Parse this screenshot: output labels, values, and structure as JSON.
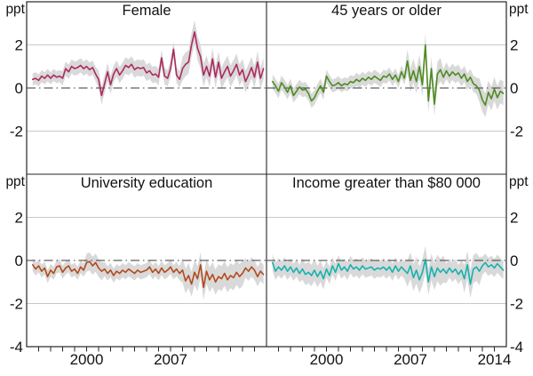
{
  "unit": "ppt",
  "chart_data": {
    "type": "line",
    "description": "Four-panel quarterly line chart with shaded confidence bands, values in percentage points (ppt)",
    "x_axis_range": [
      1995,
      2015
    ],
    "x_start": 1995.5,
    "x_step": 0.25,
    "ylim": [
      -4,
      4
    ],
    "unit": "ppt",
    "grid_values": [
      2,
      -2
    ],
    "zero_line_value": 0,
    "minor_xticks": [
      1996,
      1997,
      1998,
      1999,
      2000,
      2001,
      2002,
      2003,
      2004,
      2005,
      2006,
      2007,
      2008,
      2009,
      2010,
      2011,
      2012,
      2013,
      2014
    ],
    "yticks": {
      "top": [
        2,
        0,
        -2
      ],
      "bottom": [
        2,
        0,
        -2,
        -4
      ]
    },
    "colors": {
      "band": "#d9d9d9",
      "grid": "#c8c8c8",
      "zero_line": "#3a3a3a",
      "frame": "#262626",
      "text": "#111111"
    },
    "panels": [
      {
        "title": "Female",
        "position": "top-left",
        "color": "#ad2a5e",
        "xtick_labels": [],
        "values": [
          0.4,
          0.45,
          0.35,
          0.55,
          0.45,
          0.6,
          0.45,
          0.6,
          0.5,
          0.55,
          0.45,
          0.9,
          0.75,
          1.0,
          0.9,
          0.95,
          1.05,
          0.9,
          1.0,
          0.85,
          0.95,
          0.65,
          0.4,
          -0.35,
          0.2,
          0.75,
          0.15,
          0.65,
          0.9,
          0.6,
          0.8,
          1.05,
          0.95,
          1.1,
          0.85,
          0.95,
          0.9,
          0.95,
          0.7,
          0.8,
          0.6,
          0.65,
          0.5,
          1.4,
          0.55,
          0.45,
          0.9,
          1.8,
          0.6,
          0.4,
          0.9,
          1.1,
          1.2,
          2.0,
          2.6,
          1.85,
          1.45,
          0.6,
          1.0,
          0.55,
          1.35,
          0.5,
          1.2,
          0.45,
          0.75,
          1.0,
          0.55,
          0.8,
          1.1,
          0.6,
          0.85,
          0.3,
          0.6,
          0.95,
          0.5,
          1.2,
          0.45,
          0.9
        ],
        "band_halfwidth": [
          0.28,
          0.28,
          0.28,
          0.28,
          0.28,
          0.28,
          0.28,
          0.28,
          0.28,
          0.28,
          0.33,
          0.33,
          0.33,
          0.33,
          0.33,
          0.33,
          0.33,
          0.33,
          0.33,
          0.33,
          0.33,
          0.33,
          0.42,
          0.42,
          0.42,
          0.42,
          0.42,
          0.38,
          0.38,
          0.38,
          0.38,
          0.38,
          0.38,
          0.38,
          0.38,
          0.38,
          0.38,
          0.38,
          0.38,
          0.38,
          0.38,
          0.38,
          0.38,
          0.38,
          0.38,
          0.38,
          0.38,
          0.38,
          0.38,
          0.38,
          0.55,
          0.55,
          0.55,
          0.55,
          0.55,
          0.55,
          0.55,
          0.55,
          0.5,
          0.5,
          0.5,
          0.5,
          0.5,
          0.5,
          0.5,
          0.5,
          0.5,
          0.5,
          0.5,
          0.5,
          0.5,
          0.5,
          0.5,
          0.5,
          0.5,
          0.5,
          0.5,
          0.5
        ]
      },
      {
        "title": "45 years or older",
        "position": "top-right",
        "color": "#4e8b1f",
        "xtick_labels": [],
        "values": [
          0.3,
          0.1,
          -0.15,
          0.25,
          0.05,
          -0.2,
          0.1,
          -0.35,
          -0.15,
          0.05,
          -0.1,
          -0.05,
          -0.25,
          -0.6,
          -0.45,
          -0.15,
          0.1,
          -0.2,
          0.55,
          0.3,
          0.1,
          0.15,
          0.25,
          0.1,
          0.2,
          0.15,
          0.3,
          0.25,
          0.4,
          0.3,
          0.45,
          0.35,
          0.5,
          0.4,
          0.55,
          0.45,
          0.35,
          0.55,
          0.5,
          0.65,
          0.4,
          0.6,
          0.3,
          0.75,
          0.45,
          1.25,
          0.35,
          0.8,
          0.3,
          1.0,
          0.15,
          2.0,
          -0.6,
          0.9,
          -0.75,
          0.65,
          0.85,
          0.5,
          0.8,
          0.55,
          0.75,
          0.6,
          0.7,
          0.45,
          0.65,
          0.3,
          0.5,
          0.2,
          0.1,
          -0.1,
          -0.55,
          -0.8,
          -0.2,
          -0.5,
          -0.05,
          -0.45,
          -0.15,
          -0.25
        ],
        "band_halfwidth": [
          0.33,
          0.33,
          0.33,
          0.33,
          0.33,
          0.33,
          0.33,
          0.33,
          0.33,
          0.33,
          0.33,
          0.33,
          0.33,
          0.33,
          0.33,
          0.33,
          0.33,
          0.33,
          0.3,
          0.3,
          0.3,
          0.3,
          0.3,
          0.3,
          0.3,
          0.3,
          0.3,
          0.3,
          0.3,
          0.3,
          0.3,
          0.3,
          0.3,
          0.3,
          0.3,
          0.3,
          0.3,
          0.3,
          0.3,
          0.3,
          0.3,
          0.3,
          0.3,
          0.3,
          0.3,
          0.55,
          0.55,
          0.55,
          0.55,
          0.55,
          0.55,
          0.55,
          0.55,
          0.55,
          0.55,
          0.55,
          0.55,
          0.38,
          0.38,
          0.38,
          0.38,
          0.38,
          0.38,
          0.38,
          0.38,
          0.38,
          0.38,
          0.38,
          0.38,
          0.55,
          0.55,
          0.55,
          0.55,
          0.55,
          0.55,
          0.55,
          0.55,
          0.55
        ]
      },
      {
        "title": "University education",
        "position": "bottom-left",
        "color": "#b24a1b",
        "xtick_labels": [
          2000,
          2007
        ],
        "values": [
          -0.2,
          -0.4,
          -0.25,
          -0.5,
          -0.35,
          -0.75,
          -0.45,
          -0.6,
          -0.3,
          -0.25,
          -0.55,
          -0.35,
          -0.25,
          -0.5,
          -0.4,
          -0.6,
          -0.3,
          -0.45,
          -0.1,
          -0.05,
          -0.25,
          -0.1,
          -0.35,
          -0.5,
          -0.4,
          -0.6,
          -0.45,
          -0.7,
          -0.5,
          -0.6,
          -0.45,
          -0.55,
          -0.4,
          -0.5,
          -0.6,
          -0.45,
          -0.55,
          -0.5,
          -0.45,
          -0.3,
          -0.55,
          -0.4,
          -0.6,
          -0.35,
          -0.55,
          -0.45,
          -0.3,
          -0.55,
          -0.4,
          -0.6,
          -0.45,
          -0.95,
          -0.7,
          -1.1,
          -0.55,
          -0.85,
          -0.2,
          -1.25,
          -0.5,
          -0.9,
          -0.65,
          -1.0,
          -0.75,
          -0.85,
          -0.6,
          -0.9,
          -0.7,
          -0.8,
          -0.55,
          -0.75,
          -0.6,
          -0.35,
          -0.5,
          -0.3,
          -0.45,
          -0.75,
          -0.5,
          -0.65
        ],
        "band_halfwidth": [
          0.3,
          0.3,
          0.3,
          0.3,
          0.3,
          0.3,
          0.3,
          0.3,
          0.3,
          0.3,
          0.3,
          0.3,
          0.3,
          0.3,
          0.3,
          0.3,
          0.3,
          0.3,
          0.42,
          0.42,
          0.42,
          0.42,
          0.42,
          0.42,
          0.33,
          0.33,
          0.33,
          0.33,
          0.33,
          0.33,
          0.33,
          0.33,
          0.33,
          0.33,
          0.33,
          0.33,
          0.33,
          0.33,
          0.33,
          0.33,
          0.33,
          0.33,
          0.33,
          0.33,
          0.33,
          0.33,
          0.33,
          0.33,
          0.33,
          0.33,
          0.58,
          0.58,
          0.58,
          0.58,
          0.58,
          0.58,
          0.58,
          0.58,
          0.58,
          0.58,
          0.58,
          0.58,
          0.58,
          0.58,
          0.58,
          0.58,
          0.58,
          0.58,
          0.58,
          0.58,
          0.58,
          0.45,
          0.45,
          0.45,
          0.45,
          0.45,
          0.45,
          0.45
        ]
      },
      {
        "title": "Income greater than $80 000",
        "position": "bottom-right",
        "color": "#16b2ac",
        "xtick_labels": [
          2000,
          2007,
          2014
        ],
        "values": [
          -0.1,
          -0.5,
          -0.3,
          -0.45,
          -0.25,
          -0.5,
          -0.3,
          -0.55,
          -0.35,
          -0.6,
          -0.4,
          -0.65,
          -0.55,
          -0.7,
          -0.45,
          -0.75,
          -0.5,
          -0.85,
          -0.4,
          -0.7,
          -0.25,
          -0.55,
          -0.15,
          -0.45,
          -0.3,
          -0.5,
          -0.2,
          -0.4,
          -0.3,
          -0.45,
          -0.25,
          -0.4,
          -0.35,
          -0.3,
          -0.45,
          -0.35,
          -0.4,
          -0.3,
          -0.45,
          -0.3,
          -0.55,
          -0.25,
          -0.5,
          -0.3,
          -0.45,
          -0.6,
          -0.25,
          -0.8,
          -0.45,
          -0.9,
          -0.55,
          0.05,
          -1.0,
          -0.3,
          -0.75,
          -0.35,
          -0.55,
          -0.4,
          -0.6,
          -0.35,
          -0.55,
          -0.4,
          -0.65,
          -0.45,
          -0.85,
          -0.2,
          -1.1,
          -0.4,
          -0.3,
          -0.5,
          -0.25,
          -0.1,
          -0.3,
          -0.2,
          -0.35,
          -0.15,
          -0.3,
          -0.45
        ],
        "band_halfwidth": [
          0.4,
          0.4,
          0.4,
          0.4,
          0.4,
          0.4,
          0.4,
          0.4,
          0.4,
          0.4,
          0.5,
          0.5,
          0.5,
          0.5,
          0.5,
          0.5,
          0.5,
          0.5,
          0.4,
          0.4,
          0.4,
          0.4,
          0.4,
          0.4,
          0.4,
          0.4,
          0.4,
          0.4,
          0.4,
          0.4,
          0.4,
          0.4,
          0.4,
          0.4,
          0.4,
          0.4,
          0.4,
          0.4,
          0.4,
          0.4,
          0.4,
          0.4,
          0.4,
          0.4,
          0.4,
          0.62,
          0.62,
          0.62,
          0.62,
          0.62,
          0.62,
          0.62,
          0.62,
          0.62,
          0.62,
          0.62,
          0.62,
          0.62,
          0.45,
          0.45,
          0.45,
          0.45,
          0.45,
          0.45,
          0.65,
          0.65,
          0.65,
          0.65,
          0.65,
          0.65,
          0.42,
          0.42,
          0.42,
          0.42,
          0.42,
          0.42,
          0.42,
          0.42
        ]
      }
    ]
  }
}
